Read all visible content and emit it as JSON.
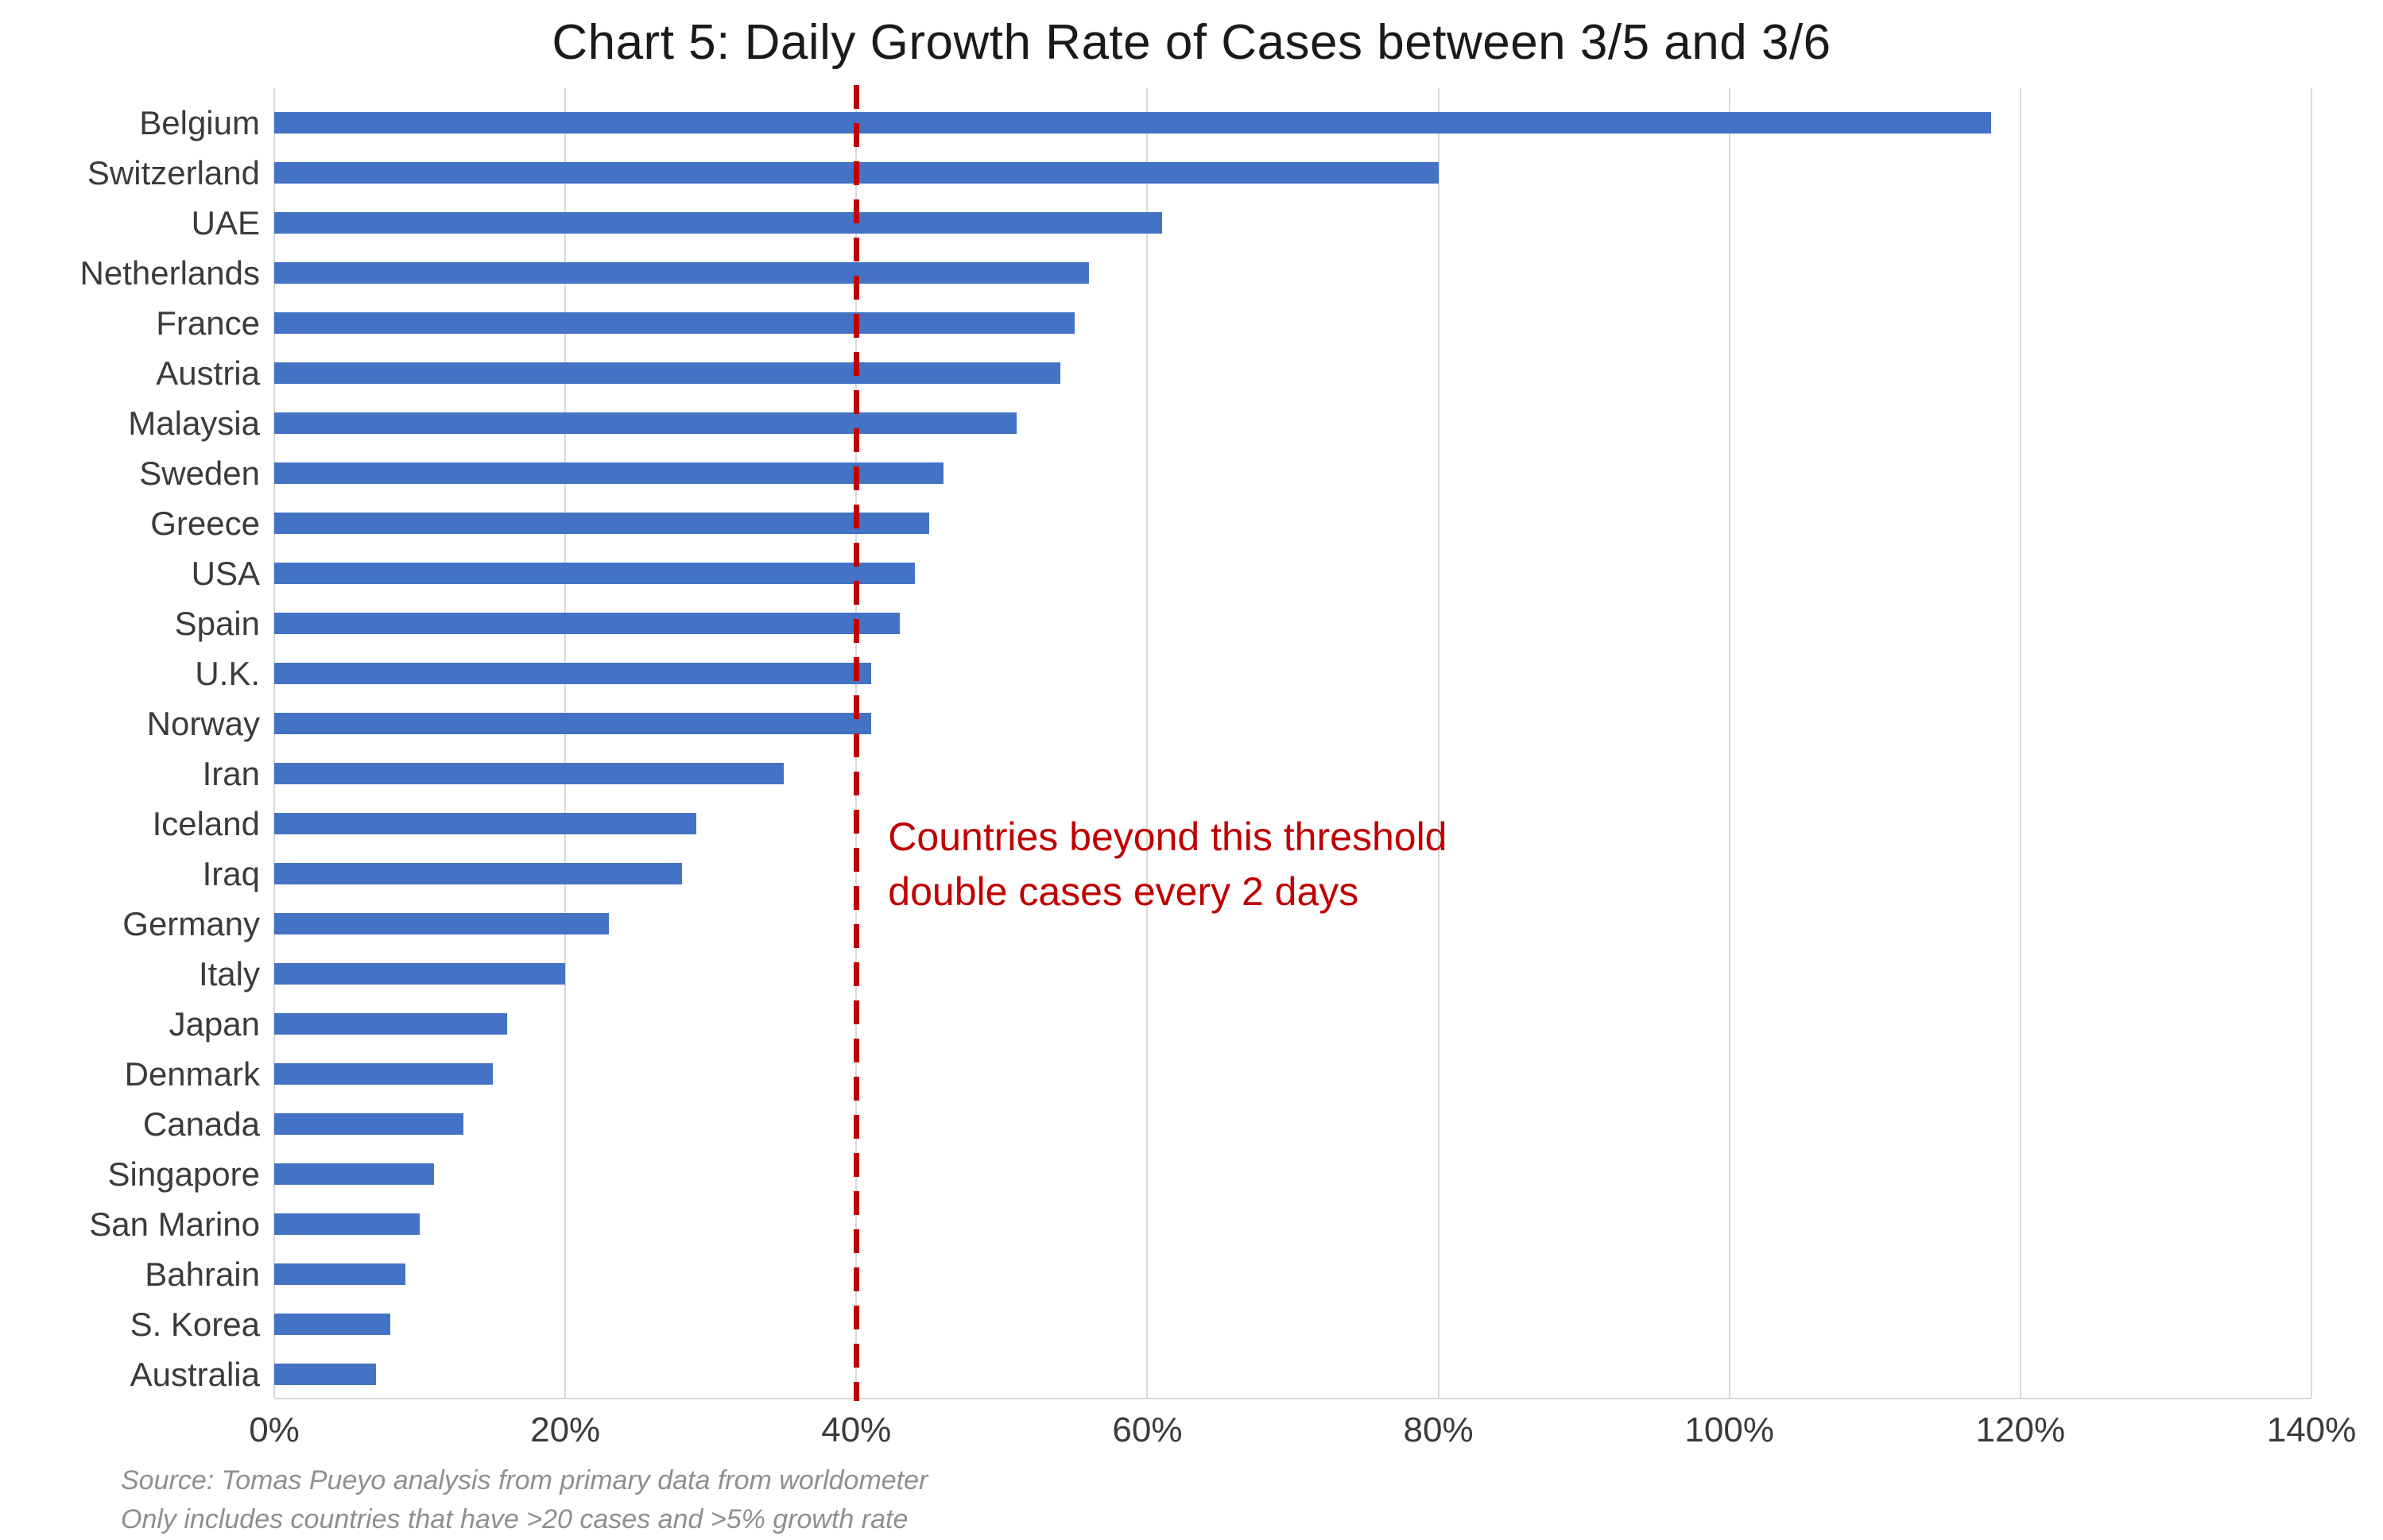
{
  "chart_data": {
    "type": "bar",
    "orientation": "horizontal",
    "title": "Chart 5: Daily Growth Rate of Cases between 3/5 and 3/6",
    "categories": [
      "Belgium",
      "Switzerland",
      "UAE",
      "Netherlands",
      "France",
      "Austria",
      "Malaysia",
      "Sweden",
      "Greece",
      "USA",
      "Spain",
      "U.K.",
      "Norway",
      "Iran",
      "Iceland",
      "Iraq",
      "Germany",
      "Italy",
      "Japan",
      "Denmark",
      "Canada",
      "Singapore",
      "San Marino",
      "Bahrain",
      "S. Korea",
      "Australia"
    ],
    "values": [
      118,
      80,
      61,
      56,
      55,
      54,
      51,
      46,
      45,
      44,
      43,
      41,
      41,
      35,
      29,
      28,
      23,
      20,
      16,
      15,
      13,
      11,
      10,
      9,
      8,
      7
    ],
    "unit": "%",
    "xlabel": "",
    "ylabel": "",
    "xlim": [
      0,
      140
    ],
    "grid": true,
    "legend": "none",
    "bar_color": "#4472C4",
    "x_ticks": [
      {
        "value": 0,
        "label": "0%"
      },
      {
        "value": 20,
        "label": "20%"
      },
      {
        "value": 40,
        "label": "40%"
      },
      {
        "value": 60,
        "label": "60%"
      },
      {
        "value": 80,
        "label": "80%"
      },
      {
        "value": 100,
        "label": "100%"
      },
      {
        "value": 120,
        "label": "120%"
      },
      {
        "value": 140,
        "label": "140%"
      }
    ],
    "threshold": {
      "value": 40,
      "color": "#C00000",
      "lines": [
        "Countries beyond this threshold",
        "double cases every 2 days"
      ]
    },
    "source_lines": [
      "Source: Tomas Pueyo analysis from primary data from worldometer",
      "Only includes countries that have >20 cases and >5% growth rate"
    ]
  }
}
